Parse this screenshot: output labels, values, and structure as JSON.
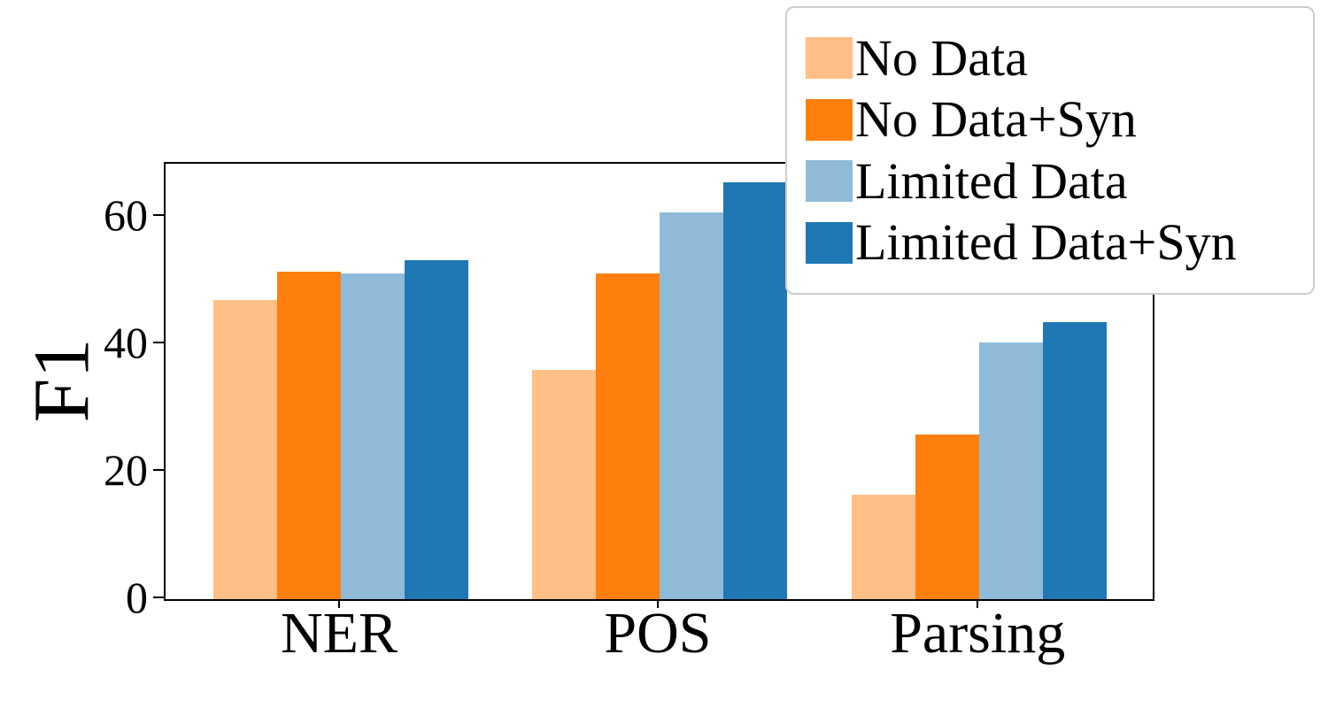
{
  "chart_data": {
    "type": "bar",
    "categories": [
      "NER",
      "POS",
      "Parsing"
    ],
    "series": [
      {
        "name": "No Data",
        "color": "#FFBF86",
        "values": [
          46.9,
          35.9,
          16.4
        ]
      },
      {
        "name": "No Data+Syn",
        "color": "#FF7F0E",
        "values": [
          51.4,
          51.1,
          25.8
        ]
      },
      {
        "name": "Limited Data",
        "color": "#8FBBD9",
        "values": [
          51.1,
          60.6,
          40.2
        ]
      },
      {
        "name": "Limited Data+Syn",
        "color": "#1F77B4",
        "values": [
          53.2,
          65.4,
          43.5
        ]
      }
    ],
    "title": "",
    "xlabel": "",
    "ylabel": "F1",
    "yticks": [
      0,
      20,
      40,
      60
    ],
    "ylim": [
      0,
      68.3
    ],
    "grid": false,
    "legend_position": "upper right",
    "axis_color": "#000000",
    "legend_border_color": "#cccccc"
  }
}
